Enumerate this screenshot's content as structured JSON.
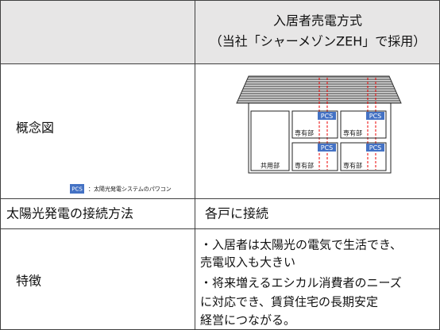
{
  "header": {
    "title_lines": [
      "入居者売電方式",
      "（当社「シャーメゾンZEH」で採用）"
    ]
  },
  "table": {
    "rows": [
      {
        "label": "概念図",
        "legend": {
          "badge": "PCS",
          "text": "：太陽光発電システムのパワコン"
        },
        "diagram": {
          "common": "共用部",
          "units": [
            {
              "label": "専有部",
              "pcs": "PCS"
            },
            {
              "label": "専有部",
              "pcs": "PCS"
            },
            {
              "label": "専有部",
              "pcs": "PCS"
            },
            {
              "label": "専有部",
              "pcs": "PCS"
            }
          ]
        }
      },
      {
        "label": "太陽光発電の接続方法",
        "value": "各戸に接続"
      },
      {
        "label": "特徴",
        "lines": [
          "・入居者は太陽光の電気で生活でき、",
          "売電収入も大きい",
          "・将来増えるエシカル消費者のニーズ",
          "に対応でき、賃貸住宅の長期安定",
          "経営につながる。"
        ]
      }
    ]
  }
}
